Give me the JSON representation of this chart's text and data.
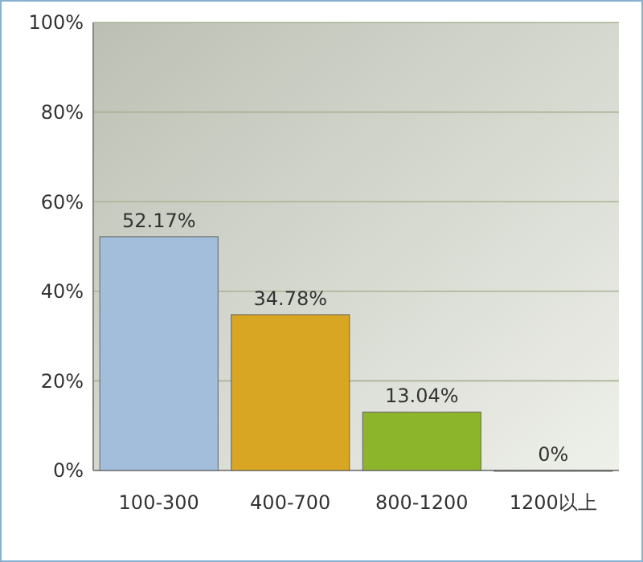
{
  "chart_data": {
    "type": "bar",
    "categories": [
      "100-300",
      "400-700",
      "800-1200",
      "1200以上"
    ],
    "values": [
      52.17,
      34.78,
      13.04,
      0
    ],
    "colors": [
      "#a3bedb",
      "#d9a623",
      "#8cb52c",
      "#f0906c"
    ],
    "value_labels": [
      "52.17%",
      "34.78%",
      "13.04%",
      "0%"
    ],
    "ylim": [
      0,
      100
    ],
    "yticks": [
      {
        "value": 0,
        "label": "0%"
      },
      {
        "value": 20,
        "label": "20%"
      },
      {
        "value": 40,
        "label": "40%"
      },
      {
        "value": 60,
        "label": "60%"
      },
      {
        "value": 80,
        "label": "80%"
      },
      {
        "value": 100,
        "label": "100%"
      }
    ],
    "grid": "y"
  }
}
